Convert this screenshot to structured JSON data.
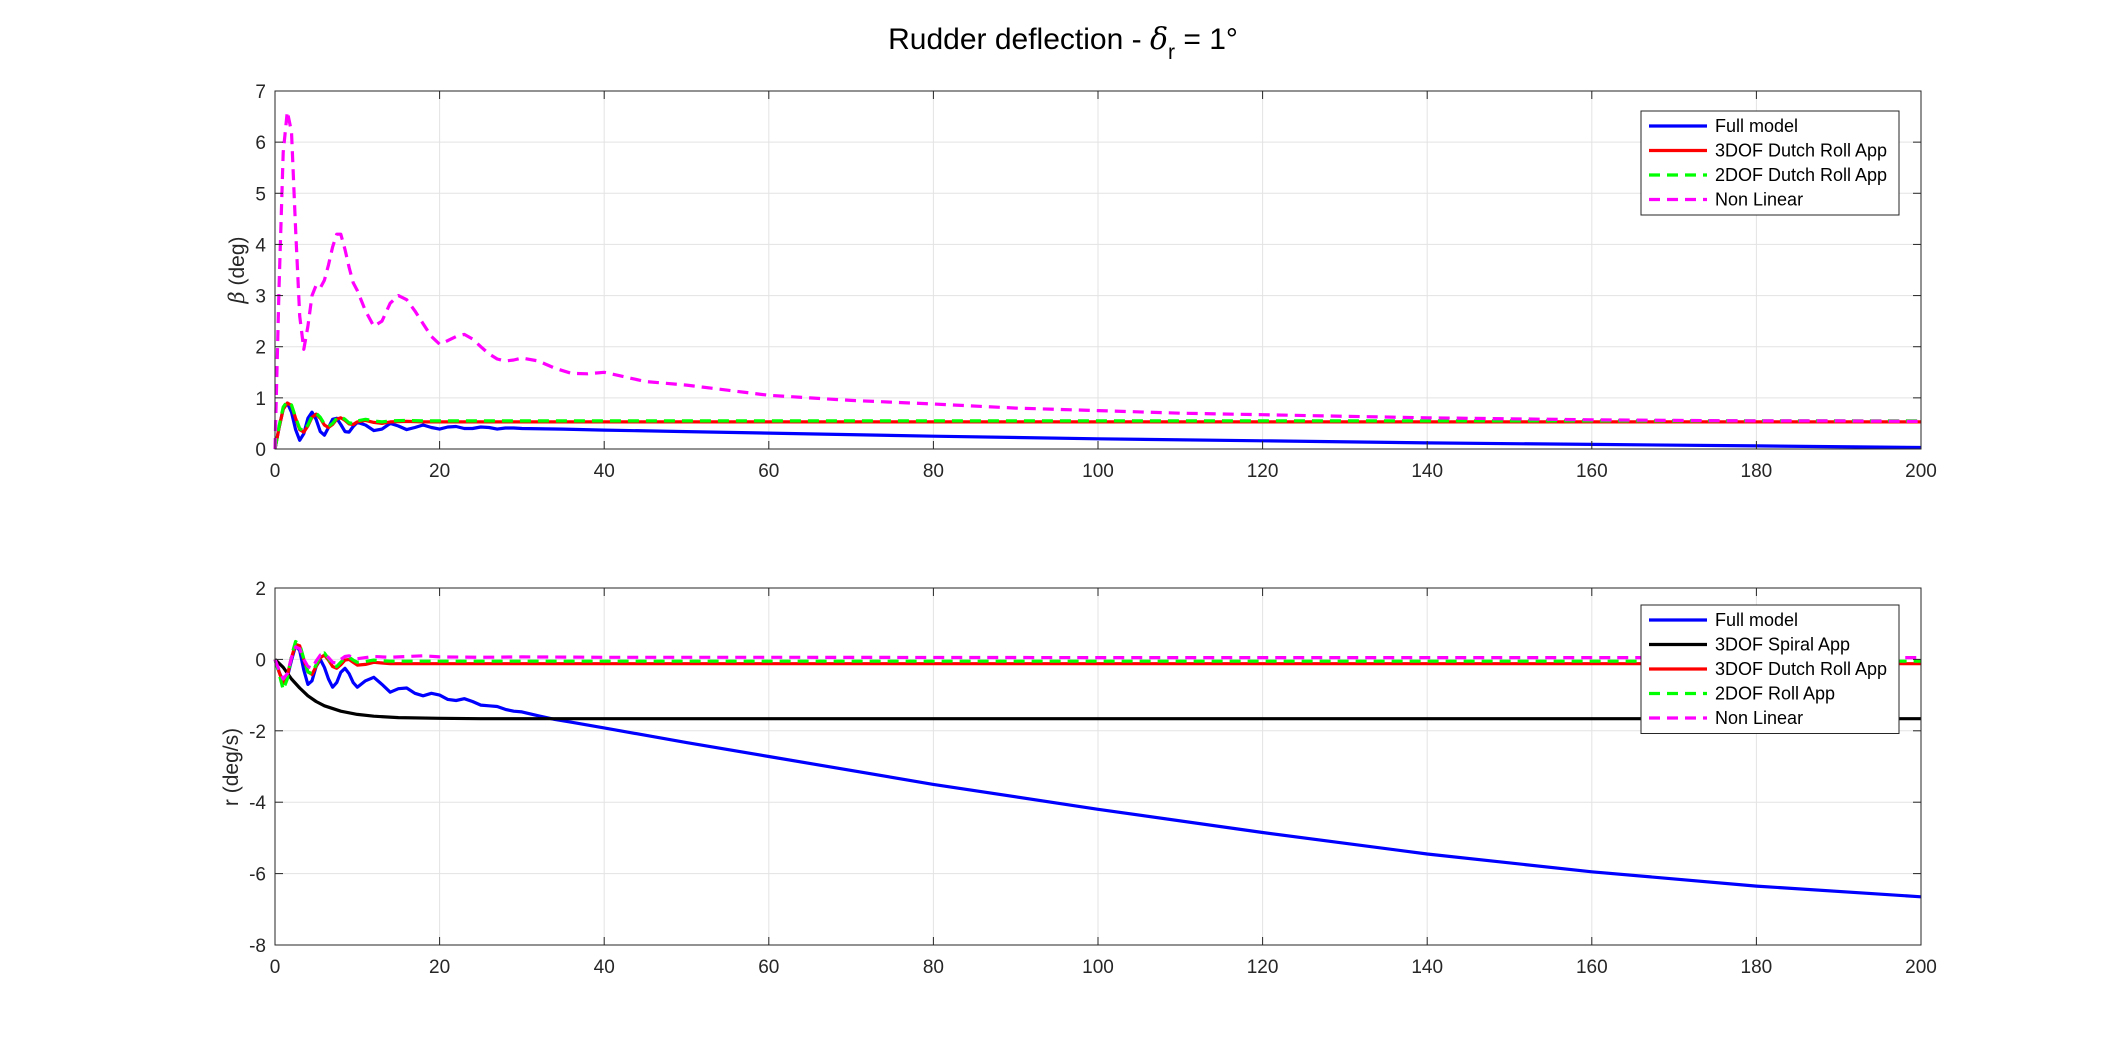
{
  "figure": {
    "title_main": "Rudder deflection - ",
    "title_symbol": "δ",
    "title_sub": "r",
    "title_tail": " = 1°"
  },
  "chart_data": [
    {
      "type": "line",
      "xlabel": "",
      "ylabel_symbol": "β",
      "ylabel_unit": " (deg)",
      "xlim": [
        0,
        200
      ],
      "ylim": [
        0,
        7
      ],
      "xticks": [
        "0",
        "20",
        "40",
        "60",
        "80",
        "100",
        "120",
        "140",
        "160",
        "180",
        "200"
      ],
      "yticks": [
        "0",
        "1",
        "2",
        "3",
        "4",
        "5",
        "6",
        "7"
      ],
      "grid": true,
      "legend_position": "top-right",
      "series": [
        {
          "name": "Full model",
          "color": "#0000ff",
          "dash": "solid",
          "x": [
            0,
            0.5,
            1,
            1.5,
            2,
            2.5,
            3,
            3.5,
            4,
            4.5,
            5,
            5.5,
            6,
            6.5,
            7,
            7.5,
            8,
            8.5,
            9,
            9.5,
            10,
            11,
            12,
            13,
            14,
            15,
            16,
            17,
            18,
            19,
            20,
            21,
            22,
            23,
            24,
            25,
            26,
            27,
            28,
            29,
            30,
            35,
            40,
            50,
            60,
            80,
            100,
            120,
            140,
            160,
            180,
            200
          ],
          "y": [
            0,
            0.42,
            0.78,
            0.9,
            0.72,
            0.38,
            0.17,
            0.3,
            0.6,
            0.72,
            0.58,
            0.34,
            0.27,
            0.42,
            0.58,
            0.6,
            0.48,
            0.34,
            0.33,
            0.44,
            0.52,
            0.47,
            0.36,
            0.39,
            0.5,
            0.45,
            0.38,
            0.42,
            0.47,
            0.42,
            0.39,
            0.43,
            0.44,
            0.4,
            0.4,
            0.43,
            0.42,
            0.39,
            0.41,
            0.41,
            0.4,
            0.39,
            0.37,
            0.34,
            0.31,
            0.25,
            0.2,
            0.16,
            0.12,
            0.09,
            0.06,
            0.03
          ]
        },
        {
          "name": "3DOF Dutch Roll App",
          "color": "#ff0000",
          "dash": "solid",
          "x": [
            0,
            0.5,
            1,
            1.5,
            2,
            2.5,
            3,
            3.5,
            4,
            4.5,
            5,
            5.5,
            6,
            6.5,
            7,
            7.5,
            8,
            8.5,
            9,
            9.5,
            10,
            11,
            12,
            13,
            14,
            16,
            18,
            20,
            25,
            30,
            200
          ],
          "y": [
            0,
            0.42,
            0.78,
            0.9,
            0.85,
            0.6,
            0.38,
            0.33,
            0.45,
            0.62,
            0.68,
            0.6,
            0.47,
            0.42,
            0.48,
            0.58,
            0.61,
            0.56,
            0.49,
            0.48,
            0.53,
            0.56,
            0.52,
            0.5,
            0.53,
            0.54,
            0.53,
            0.53,
            0.53,
            0.53,
            0.53
          ]
        },
        {
          "name": "2DOF Dutch Roll App",
          "color": "#00ff00",
          "dash": "dashed",
          "x": [
            0,
            0.5,
            1,
            1.5,
            2,
            2.5,
            3,
            3.5,
            4,
            4.5,
            5,
            5.5,
            6,
            6.5,
            7,
            7.5,
            8,
            8.5,
            9,
            9.5,
            10,
            11,
            12,
            13,
            14,
            16,
            18,
            20,
            25,
            30,
            200
          ],
          "y": [
            0,
            0.45,
            0.82,
            0.93,
            0.86,
            0.62,
            0.4,
            0.35,
            0.47,
            0.64,
            0.7,
            0.62,
            0.49,
            0.44,
            0.5,
            0.6,
            0.63,
            0.58,
            0.51,
            0.5,
            0.55,
            0.58,
            0.55,
            0.53,
            0.55,
            0.56,
            0.55,
            0.55,
            0.55,
            0.55,
            0.55
          ]
        },
        {
          "name": "Non Linear",
          "color": "#ff00ff",
          "dash": "dashed",
          "x": [
            0,
            0.5,
            1,
            1.5,
            2,
            2.5,
            3,
            3.5,
            4,
            4.5,
            5,
            5.5,
            6,
            6.5,
            7,
            7.5,
            8,
            8.5,
            9,
            9.5,
            10,
            11,
            12,
            13,
            14,
            15,
            16,
            17,
            18,
            19,
            20,
            21,
            22,
            23,
            24,
            25,
            26,
            27,
            28,
            29,
            30,
            32,
            34,
            36,
            38,
            40,
            45,
            50,
            55,
            60,
            65,
            70,
            80,
            90,
            100,
            110,
            120,
            130,
            140,
            150,
            160,
            170,
            180,
            190,
            200
          ],
          "y": [
            0,
            3.2,
            5.8,
            6.6,
            6.2,
            4.3,
            2.6,
            1.95,
            2.4,
            3.0,
            3.2,
            3.15,
            3.3,
            3.6,
            3.95,
            4.2,
            4.2,
            3.9,
            3.55,
            3.25,
            3.1,
            2.7,
            2.4,
            2.5,
            2.85,
            3.0,
            2.92,
            2.7,
            2.45,
            2.2,
            2.05,
            2.12,
            2.2,
            2.24,
            2.15,
            2.0,
            1.86,
            1.76,
            1.72,
            1.74,
            1.78,
            1.72,
            1.58,
            1.48,
            1.47,
            1.5,
            1.32,
            1.25,
            1.15,
            1.05,
            1.0,
            0.95,
            0.88,
            0.8,
            0.75,
            0.7,
            0.67,
            0.64,
            0.61,
            0.59,
            0.57,
            0.56,
            0.55,
            0.55,
            0.54
          ]
        }
      ]
    },
    {
      "type": "line",
      "xlabel": "",
      "ylabel": "r (deg/s)",
      "xlim": [
        0,
        200
      ],
      "ylim": [
        -8,
        2
      ],
      "xticks": [
        "0",
        "20",
        "40",
        "60",
        "80",
        "100",
        "120",
        "140",
        "160",
        "180",
        "200"
      ],
      "yticks": [
        "-8",
        "-6",
        "-4",
        "-2",
        "0",
        "2"
      ],
      "grid": true,
      "legend_position": "top-right",
      "series": [
        {
          "name": "Full model",
          "color": "#0000ff",
          "dash": "solid",
          "x": [
            0,
            0.5,
            1,
            1.5,
            2,
            2.5,
            3,
            3.5,
            4,
            4.5,
            5,
            5.5,
            6,
            6.5,
            7,
            7.5,
            8,
            8.5,
            9,
            9.5,
            10,
            11,
            12,
            13,
            14,
            15,
            16,
            17,
            18,
            19,
            20,
            21,
            22,
            23,
            24,
            25,
            26,
            27,
            28,
            29,
            30,
            32,
            34,
            36,
            40,
            50,
            60,
            80,
            100,
            120,
            140,
            160,
            180,
            200
          ],
          "y": [
            0,
            -0.35,
            -0.62,
            -0.5,
            -0.02,
            0.38,
            0.25,
            -0.3,
            -0.7,
            -0.6,
            -0.2,
            0.0,
            -0.22,
            -0.55,
            -0.78,
            -0.65,
            -0.36,
            -0.25,
            -0.4,
            -0.65,
            -0.78,
            -0.6,
            -0.5,
            -0.7,
            -0.92,
            -0.82,
            -0.8,
            -0.95,
            -1.02,
            -0.95,
            -1.0,
            -1.12,
            -1.15,
            -1.1,
            -1.18,
            -1.28,
            -1.3,
            -1.32,
            -1.4,
            -1.45,
            -1.47,
            -1.58,
            -1.68,
            -1.76,
            -1.92,
            -2.33,
            -2.72,
            -3.5,
            -4.2,
            -4.85,
            -5.45,
            -5.95,
            -6.35,
            -6.65
          ]
        },
        {
          "name": "3DOF Spiral App",
          "color": "#000000",
          "dash": "solid",
          "x": [
            0,
            1,
            2,
            3,
            4,
            5,
            6,
            8,
            10,
            12,
            15,
            20,
            25,
            30,
            40,
            200
          ],
          "y": [
            0,
            -0.22,
            -0.55,
            -0.8,
            -1.02,
            -1.18,
            -1.3,
            -1.45,
            -1.54,
            -1.59,
            -1.63,
            -1.65,
            -1.66,
            -1.66,
            -1.66,
            -1.66
          ]
        },
        {
          "name": "3DOF Dutch Roll App",
          "color": "#ff0000",
          "dash": "solid",
          "x": [
            0,
            0.5,
            1,
            1.5,
            2,
            2.5,
            3,
            3.5,
            4,
            4.5,
            5,
            5.5,
            6,
            6.5,
            7,
            7.5,
            8,
            8.5,
            9,
            9.5,
            10,
            11,
            12,
            13,
            14,
            16,
            20,
            30,
            200
          ],
          "y": [
            0,
            -0.35,
            -0.68,
            -0.45,
            0.05,
            0.42,
            0.38,
            0.0,
            -0.35,
            -0.42,
            -0.2,
            0.05,
            0.12,
            -0.02,
            -0.2,
            -0.25,
            -0.15,
            -0.02,
            0.0,
            -0.08,
            -0.16,
            -0.14,
            -0.08,
            -0.1,
            -0.12,
            -0.12,
            -0.12,
            -0.12,
            -0.12
          ]
        },
        {
          "name": "2DOF Roll App",
          "color": "#00ff00",
          "dash": "dashed",
          "x": [
            0,
            0.5,
            1,
            1.5,
            2,
            2.5,
            3,
            3.5,
            4,
            4.5,
            5,
            5.5,
            6,
            6.5,
            7,
            7.5,
            8,
            8.5,
            9,
            9.5,
            10,
            11,
            12,
            13,
            14,
            16,
            20,
            30,
            200
          ],
          "y": [
            0,
            -0.4,
            -0.85,
            -0.55,
            0.1,
            0.5,
            0.42,
            0.02,
            -0.35,
            -0.4,
            -0.15,
            0.1,
            0.18,
            0.02,
            -0.18,
            -0.2,
            -0.08,
            0.05,
            0.06,
            -0.02,
            -0.08,
            -0.06,
            -0.02,
            -0.04,
            -0.05,
            -0.05,
            -0.05,
            -0.05,
            -0.05
          ]
        },
        {
          "name": "Non Linear",
          "color": "#ff00ff",
          "dash": "dashed",
          "x": [
            0,
            0.5,
            1,
            1.5,
            2,
            2.5,
            3,
            3.5,
            4,
            4.5,
            5,
            5.5,
            6,
            6.5,
            7,
            7.5,
            8,
            8.5,
            9,
            9.5,
            10,
            11,
            12,
            14,
            16,
            18,
            20,
            25,
            30,
            40,
            60,
            100,
            200
          ],
          "y": [
            0,
            -0.3,
            -0.55,
            -0.4,
            0.05,
            0.35,
            0.3,
            0.0,
            -0.2,
            -0.25,
            -0.05,
            0.12,
            0.15,
            0.05,
            -0.08,
            -0.1,
            0.0,
            0.08,
            0.1,
            0.05,
            0.02,
            0.05,
            0.08,
            0.06,
            0.08,
            0.1,
            0.07,
            0.06,
            0.07,
            0.06,
            0.06,
            0.05,
            0.05
          ]
        }
      ]
    }
  ]
}
